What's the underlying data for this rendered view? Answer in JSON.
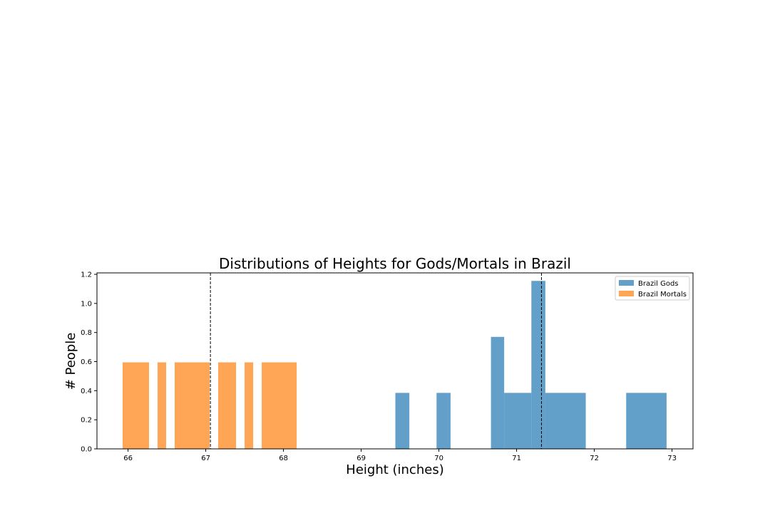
{
  "chart_data": {
    "type": "bar",
    "title": "Distributions of Heights for Gods/Mortals in Brazil",
    "xlabel": "Height (inches)",
    "ylabel": "# People",
    "xlim": [
      65.6,
      73.27
    ],
    "ylim": [
      0,
      1.21
    ],
    "xticks": [
      "66",
      "67",
      "68",
      "69",
      "70",
      "71",
      "72",
      "73"
    ],
    "yticks": [
      "0.0",
      "0.2",
      "0.4",
      "0.6",
      "0.8",
      "1.0",
      "1.2"
    ],
    "legend_position": "top-right",
    "grid": false,
    "series": [
      {
        "name": "Brazil Gods",
        "color": "#1f77b4",
        "opacity": 0.7,
        "bars": [
          {
            "x0": 69.44,
            "x1": 69.62,
            "y": 0.385
          },
          {
            "x0": 69.97,
            "x1": 70.15,
            "y": 0.385
          },
          {
            "x0": 70.67,
            "x1": 70.84,
            "y": 0.77
          },
          {
            "x0": 70.84,
            "x1": 71.19,
            "y": 0.385
          },
          {
            "x0": 71.19,
            "x1": 71.37,
            "y": 1.155
          },
          {
            "x0": 71.37,
            "x1": 71.89,
            "y": 0.385
          },
          {
            "x0": 72.41,
            "x1": 72.93,
            "y": 0.385
          }
        ]
      },
      {
        "name": "Brazil Mortals",
        "color": "#ff7f0e",
        "opacity": 0.7,
        "bars": [
          {
            "x0": 65.93,
            "x1": 66.27,
            "y": 0.595
          },
          {
            "x0": 66.38,
            "x1": 66.49,
            "y": 0.595
          },
          {
            "x0": 66.6,
            "x1": 67.05,
            "y": 0.595
          },
          {
            "x0": 67.16,
            "x1": 67.39,
            "y": 0.595
          },
          {
            "x0": 67.5,
            "x1": 67.61,
            "y": 0.595
          },
          {
            "x0": 67.72,
            "x1": 68.17,
            "y": 0.595
          }
        ]
      }
    ],
    "vlines": [
      {
        "x": 67.06,
        "style": "dashed",
        "color": "#000000"
      },
      {
        "x": 71.32,
        "style": "dashed",
        "color": "#000000"
      }
    ]
  }
}
